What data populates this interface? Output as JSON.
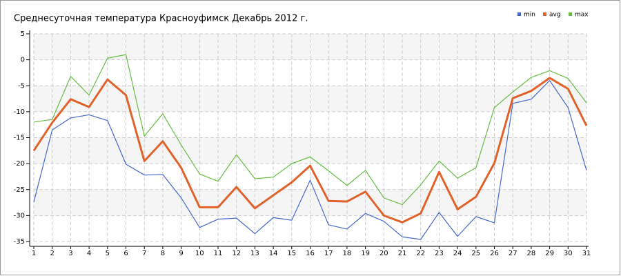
{
  "chart_data": {
    "type": "line",
    "title": "Среднесуточная температура Красноуфимск  Декабрь 2012 г.",
    "x": [
      1,
      2,
      3,
      4,
      5,
      6,
      7,
      8,
      9,
      10,
      11,
      12,
      13,
      14,
      15,
      16,
      17,
      18,
      19,
      20,
      21,
      22,
      23,
      24,
      25,
      26,
      27,
      28,
      29,
      30,
      31
    ],
    "xlim": [
      1,
      31
    ],
    "xticks": [
      1,
      2,
      3,
      4,
      5,
      6,
      7,
      8,
      9,
      10,
      11,
      12,
      13,
      14,
      15,
      16,
      17,
      18,
      19,
      20,
      21,
      22,
      23,
      24,
      25,
      26,
      27,
      28,
      29,
      30,
      31
    ],
    "ylim": [
      -35,
      5
    ],
    "yticks": [
      5,
      0,
      -5,
      -10,
      -15,
      -20,
      -25,
      -30,
      -35
    ],
    "grid": true,
    "legend": "top-right",
    "series": [
      {
        "name": "min",
        "color": "#4466cc",
        "values": [
          -27.4,
          -13.5,
          -11.2,
          -10.6,
          -11.7,
          -20.1,
          -22.2,
          -22.1,
          -26.6,
          -32.3,
          -30.7,
          -30.5,
          -33.5,
          -30.4,
          -30.9,
          -23.2,
          -31.8,
          -32.6,
          -29.6,
          -31.1,
          -34.1,
          -34.6,
          -29.4,
          -34.0,
          -30.2,
          -31.4,
          -8.4,
          -7.6,
          -4.0,
          -9.2,
          -21.3
        ]
      },
      {
        "name": "avg",
        "color": "#e0622a",
        "values": [
          -17.5,
          -12.1,
          -7.6,
          -9.1,
          -3.8,
          -6.8,
          -19.5,
          -15.7,
          -20.8,
          -28.4,
          -28.4,
          -24.5,
          -28.6,
          -26.1,
          -23.6,
          -20.4,
          -27.2,
          -27.3,
          -25.4,
          -30.0,
          -31.3,
          -29.6,
          -21.6,
          -28.8,
          -26.4,
          -19.9,
          -7.4,
          -6.0,
          -3.5,
          -5.6,
          -12.7
        ]
      },
      {
        "name": "max",
        "color": "#66bb44",
        "values": [
          -12.0,
          -11.5,
          -3.2,
          -6.8,
          0.3,
          1.0,
          -14.7,
          -10.4,
          -16.4,
          -22.0,
          -23.4,
          -18.3,
          -22.9,
          -22.6,
          -20.0,
          -18.7,
          -21.4,
          -24.2,
          -21.3,
          -26.6,
          -27.9,
          -24.1,
          -19.5,
          -22.8,
          -20.8,
          -9.2,
          -6.2,
          -3.4,
          -2.1,
          -3.6,
          -8.3
        ]
      }
    ]
  }
}
